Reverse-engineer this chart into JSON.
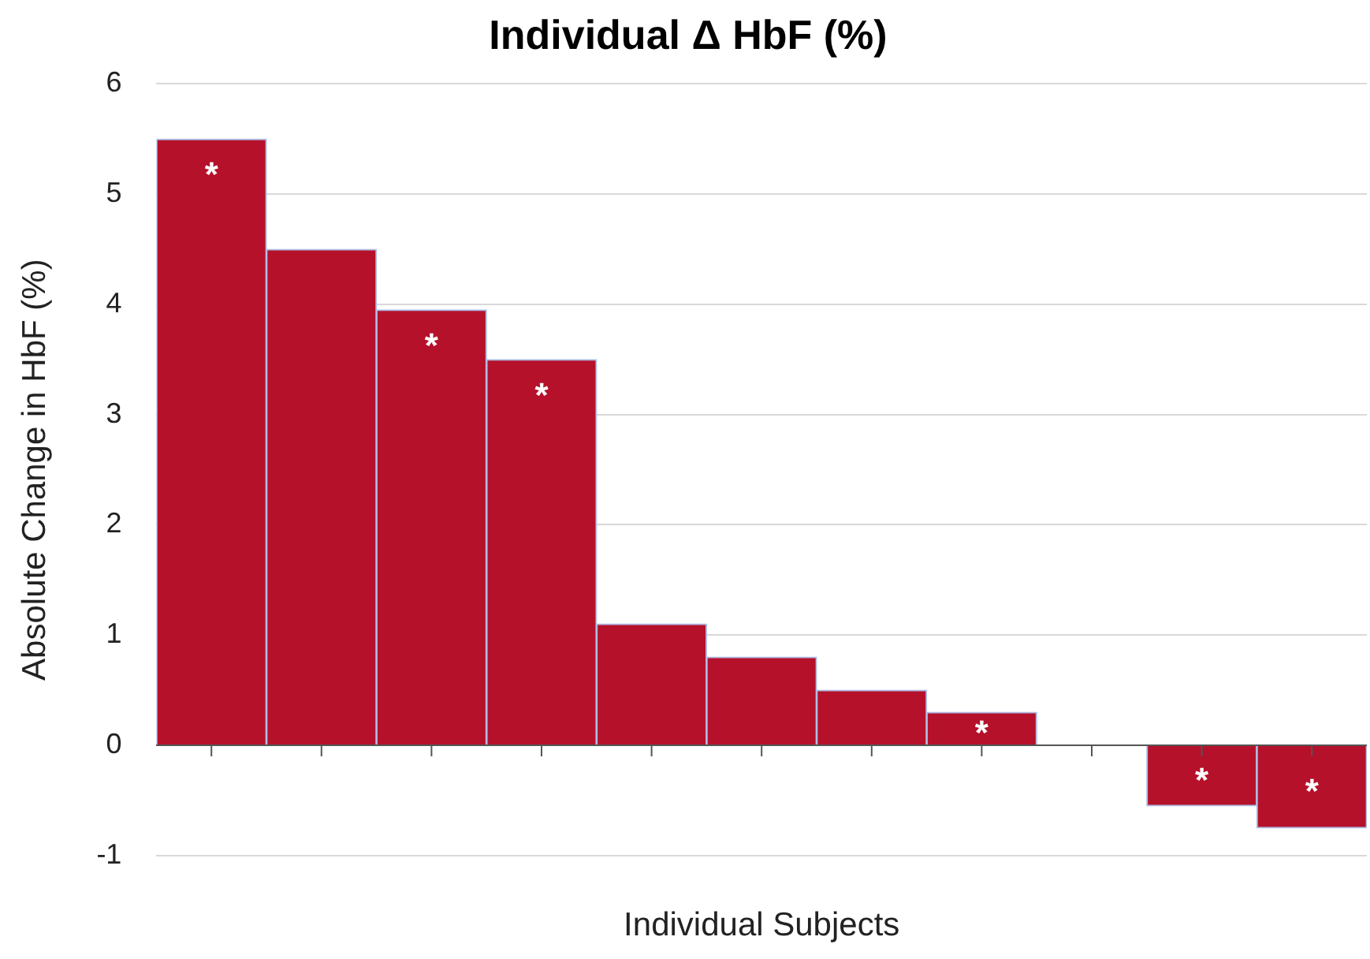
{
  "chart_data": {
    "type": "bar",
    "title": "Individual Δ HbF (%)",
    "xlabel": "Individual Subjects",
    "ylabel": "Absolute Change in HbF (%)",
    "categories": [
      null,
      null,
      null,
      null,
      null,
      null,
      null,
      null,
      null,
      null,
      null
    ],
    "values": [
      5.5,
      4.5,
      3.95,
      3.5,
      1.1,
      0.8,
      0.5,
      0.3,
      0,
      -0.55,
      -0.75
    ],
    "value_labels": [
      "*",
      null,
      "*",
      "*",
      null,
      null,
      null,
      "*",
      null,
      "*",
      "*"
    ],
    "color": "#b5112a",
    "ylim": [
      -1,
      6
    ],
    "yticks": [
      -1,
      0,
      1,
      2,
      3,
      4,
      5,
      6
    ],
    "grid": "y"
  }
}
